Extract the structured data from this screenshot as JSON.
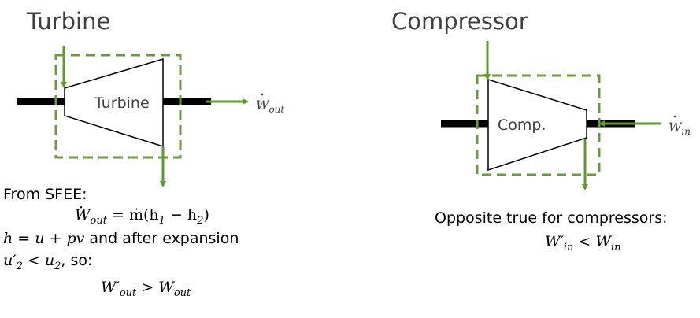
{
  "turbine": {
    "title": "Turbine",
    "component_label": "Turbine",
    "work_out_symbol": "W",
    "work_out_sub": "out"
  },
  "compressor": {
    "title": "Compressor",
    "component_label": "Comp.",
    "work_in_symbol": "W",
    "work_in_sub": "in"
  },
  "turbine_notes": {
    "from_sfee": "From SFEE:",
    "eq1_lhs_symbol": "W",
    "eq1_lhs_sub": "out",
    "eq1_rhs": "= ṁ(h",
    "eq1_rhs_sub1": "1",
    "eq1_rhs_mid": " − h",
    "eq1_rhs_sub2": "2",
    "eq1_rhs_end": ")",
    "enthalpy_eq": "h = u + pv",
    "enthalpy_text": " and after expansion",
    "ineq_lhs": "u′",
    "ineq_lhs_sub": "2",
    "ineq_mid": " < u",
    "ineq_rhs_sub": "2",
    "ineq_text": ", so:",
    "result_lhs": "W′",
    "result_lhs_sub": "out",
    "result_mid": " > W",
    "result_rhs_sub": "out"
  },
  "compressor_notes": {
    "opposite": "Opposite true for compressors:",
    "result_lhs": "W′",
    "result_lhs_sub": "in",
    "result_mid": " < W",
    "result_rhs_sub": "in"
  },
  "colors": {
    "arrow_green": "#5a9e2a",
    "boundary_green": "#6b9a3c",
    "shaft_black": "#000000",
    "text_gray": "#404040"
  }
}
